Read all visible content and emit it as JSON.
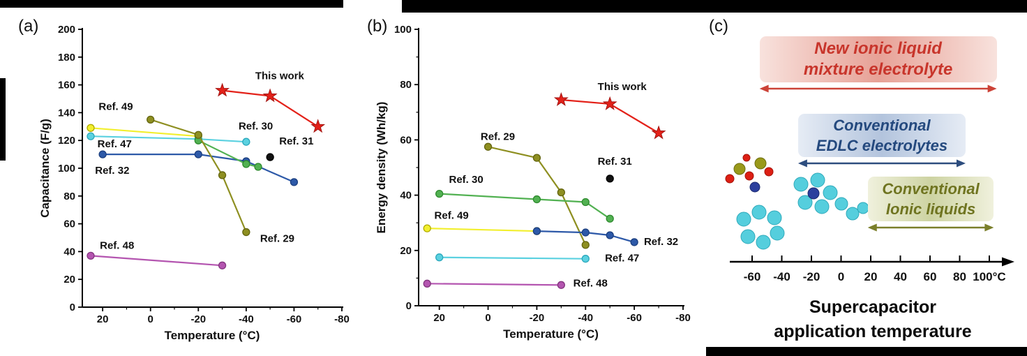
{
  "figure": {
    "panels": {
      "a": {
        "label": "(a)"
      },
      "b": {
        "label": "(b)"
      },
      "c": {
        "label": "(c)"
      }
    }
  },
  "chart_data": [
    {
      "id": "a",
      "type": "line",
      "title": "",
      "xlabel": "Temperature (°C)",
      "ylabel": "Capacitance (F/g)",
      "xlim": [
        28.5,
        -80
      ],
      "ylim": [
        0,
        200
      ],
      "xticks": [
        20,
        0,
        -20,
        -40,
        -60,
        -80
      ],
      "yticks": [
        0,
        20,
        40,
        60,
        80,
        100,
        120,
        140,
        160,
        180,
        200
      ],
      "xminor": 10,
      "yminor": null,
      "margins": {
        "l": 118,
        "r": 15,
        "t": 14,
        "b": 66
      },
      "series": [
        {
          "name": "This work",
          "marker": "star",
          "color": "#e32119",
          "edge": "#a31410",
          "x": [
            -30,
            -50,
            -70
          ],
          "y": [
            156,
            152,
            130
          ],
          "label": {
            "text": "This work",
            "x": -54,
            "y": 164
          }
        },
        {
          "name": "Ref. 49",
          "marker": "circle",
          "color": "#f2ef2e",
          "edge": "#b0ab00",
          "x": [
            25,
            -20
          ],
          "y": [
            129,
            123
          ],
          "label": {
            "text": "Ref. 49",
            "x": 14.5,
            "y": 142
          }
        },
        {
          "name": "Ref. 47",
          "marker": "circle",
          "color": "#5bd1e0",
          "edge": "#2aa8bc",
          "x": [
            25,
            -20,
            -40
          ],
          "y": [
            123,
            121,
            119
          ],
          "label": {
            "text": "Ref. 47",
            "x": 15,
            "y": 115
          }
        },
        {
          "name": "Ref. 32",
          "marker": "circle",
          "color": "#2d59a8",
          "edge": "#1c3f7f",
          "x": [
            20,
            -20,
            -40,
            -60
          ],
          "y": [
            110,
            110,
            105,
            90
          ],
          "label": {
            "text": "Ref. 32",
            "x": 16,
            "y": 96
          }
        },
        {
          "name": "Ref. 30",
          "marker": "circle",
          "color": "#52b152",
          "edge": "#2e8a2e",
          "x": [
            -20,
            -40,
            -45
          ],
          "y": [
            120,
            103,
            101
          ],
          "label": {
            "text": "Ref. 30",
            "x": -44,
            "y": 128
          }
        },
        {
          "name": "Ref. 29",
          "marker": "circle",
          "color": "#8e8f21",
          "edge": "#63640f",
          "x": [
            0,
            -20,
            -30,
            -40
          ],
          "y": [
            135,
            124,
            95,
            54
          ],
          "label": {
            "text": "Ref. 29",
            "x": -53,
            "y": 47
          }
        },
        {
          "name": "Ref. 31",
          "marker": "circle",
          "color": "#111111",
          "edge": "#000000",
          "x": [
            -50
          ],
          "y": [
            108
          ],
          "label": {
            "text": "Ref. 31",
            "x": -61,
            "y": 117
          }
        },
        {
          "name": "Ref. 48",
          "marker": "circle",
          "color": "#b455b0",
          "edge": "#83357f",
          "x": [
            25,
            -30
          ],
          "y": [
            37,
            30
          ],
          "label": {
            "text": "Ref. 48",
            "x": 14,
            "y": 42
          }
        }
      ]
    },
    {
      "id": "b",
      "type": "line",
      "title": "",
      "xlabel": "Temperature (°C)",
      "ylabel": "Energy density (Wh/kg)",
      "xlim": [
        28.5,
        -80
      ],
      "ylim": [
        0,
        100
      ],
      "xticks": [
        20,
        0,
        -20,
        -40,
        -60,
        -80
      ],
      "yticks": [
        0,
        20,
        40,
        60,
        80,
        100
      ],
      "xminor": 10,
      "yminor": 10,
      "margins": {
        "l": 95,
        "r": 18,
        "t": 14,
        "b": 68
      },
      "series": [
        {
          "name": "This work",
          "marker": "star",
          "color": "#e32119",
          "edge": "#a31410",
          "x": [
            -30,
            -50,
            -70
          ],
          "y": [
            74.5,
            73,
            62.5
          ],
          "label": {
            "text": "This work",
            "x": -55,
            "y": 78
          }
        },
        {
          "name": "Ref. 29",
          "marker": "circle",
          "color": "#8e8f21",
          "edge": "#63640f",
          "x": [
            0,
            -20,
            -30,
            -40
          ],
          "y": [
            57.5,
            53.5,
            41,
            22
          ],
          "label": {
            "text": "Ref. 29",
            "x": -4,
            "y": 60
          }
        },
        {
          "name": "Ref. 30",
          "marker": "circle",
          "color": "#52b152",
          "edge": "#2e8a2e",
          "x": [
            20,
            -20,
            -40,
            -50
          ],
          "y": [
            40.5,
            38.5,
            37.5,
            31.5
          ],
          "label": {
            "text": "Ref. 30",
            "x": 9,
            "y": 44.5
          }
        },
        {
          "name": "Ref. 31",
          "marker": "circle",
          "color": "#111111",
          "edge": "#000000",
          "x": [
            -50
          ],
          "y": [
            46
          ],
          "label": {
            "text": "Ref. 31",
            "x": -52,
            "y": 51
          }
        },
        {
          "name": "Ref. 49",
          "marker": "circle",
          "color": "#f2ef2e",
          "edge": "#b0ab00",
          "x": [
            25,
            -20
          ],
          "y": [
            28,
            27
          ],
          "label": {
            "text": "Ref. 49",
            "x": 15,
            "y": 31.5
          }
        },
        {
          "name": "Ref. 32",
          "marker": "circle",
          "color": "#2d59a8",
          "edge": "#1c3f7f",
          "x": [
            -20,
            -40,
            -50,
            -60
          ],
          "y": [
            27,
            26.5,
            25.5,
            23
          ],
          "label": {
            "text": "Ref. 32",
            "x": -71,
            "y": 22
          }
        },
        {
          "name": "Ref. 47",
          "marker": "circle",
          "color": "#5bd1e0",
          "edge": "#2aa8bc",
          "x": [
            20,
            -40
          ],
          "y": [
            17.5,
            17
          ],
          "label": {
            "text": "Ref. 47",
            "x": -55,
            "y": 16
          }
        },
        {
          "name": "Ref. 48",
          "marker": "circle",
          "color": "#b455b0",
          "edge": "#83357f",
          "x": [
            25,
            -30
          ],
          "y": [
            8,
            7.5
          ],
          "label": {
            "text": "Ref. 48",
            "x": -42,
            "y": 7
          }
        }
      ]
    }
  ],
  "panel_c": {
    "ranges": [
      {
        "label_lines": [
          "New ionic liquid",
          "mixture electrolyte"
        ],
        "text_color": "#c8352b",
        "band_edge": "#f8e2dd",
        "band_mid": "#e7a196",
        "arrow_color": "#cc4237",
        "span_c": [
          -55,
          105
        ]
      },
      {
        "label_lines": [
          "Conventional",
          "EDLC electrolytes"
        ],
        "text_color": "#24497e",
        "band_edge": "#e6ecf5",
        "band_mid": "#b3c4dd",
        "arrow_color": "#2d4d7e",
        "span_c": [
          -29,
          84
        ]
      },
      {
        "label_lines": [
          "Conventional",
          "Ionic liquids"
        ],
        "text_color": "#6f7420",
        "band_edge": "#f0f1dd",
        "band_mid": "#cdd3a2",
        "arrow_color": "#7a7f2a",
        "span_c": [
          18,
          103
        ]
      }
    ],
    "axis": {
      "tick_values": [
        -60,
        -40,
        -20,
        0,
        20,
        40,
        60,
        80,
        100
      ],
      "tick_labels": [
        "-60",
        "-40",
        "-20",
        "0",
        "20",
        "40",
        "60",
        "80",
        "100°C"
      ]
    },
    "caption_lines": [
      "Supercapacitor",
      "application temperature"
    ],
    "molecule_icon": "ionic-liquid-molecules"
  }
}
